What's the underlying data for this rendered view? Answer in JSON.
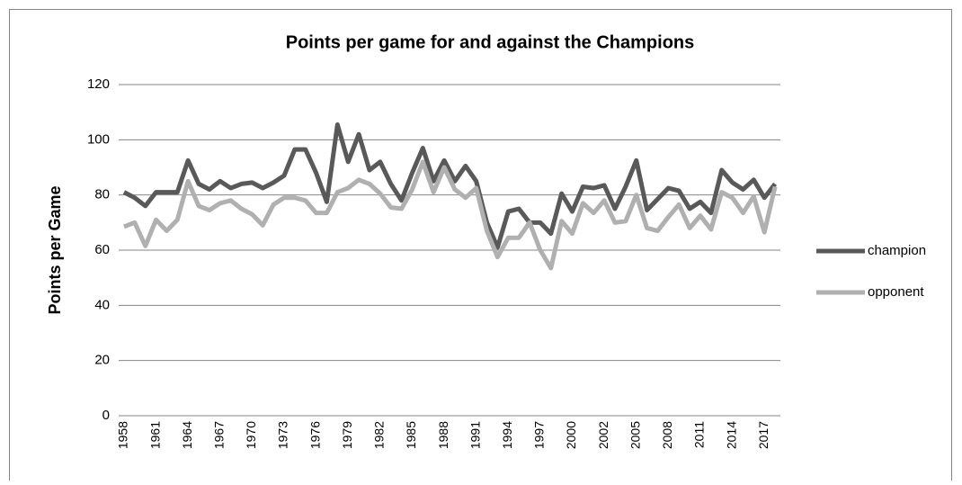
{
  "chart_data": {
    "type": "line",
    "title": "Points  per game for and against the Champions",
    "y_label": "Points per Game",
    "categories": [
      "1958",
      null,
      null,
      "1961",
      null,
      null,
      "1964",
      null,
      null,
      "1967",
      null,
      null,
      "1970",
      null,
      null,
      "1973",
      null,
      null,
      "1976",
      null,
      null,
      "1979",
      null,
      null,
      "1982",
      null,
      null,
      "1985",
      null,
      null,
      "1988",
      null,
      null,
      "1991",
      null,
      null,
      "1994",
      null,
      null,
      "1997",
      null,
      null,
      "2000",
      null,
      null,
      "2002",
      null,
      null,
      "2005",
      null,
      null,
      "2008",
      null,
      null,
      "2011",
      null,
      null,
      "2014",
      null,
      null,
      "2017",
      null
    ],
    "series": [
      {
        "name": "champion",
        "color": "#595959",
        "values": [
          81,
          79,
          76,
          81,
          81,
          81,
          92.5,
          84,
          82,
          85,
          82.5,
          84,
          84.5,
          82.5,
          84.5,
          87,
          96.5,
          96.5,
          88,
          77.5,
          105.5,
          92,
          102,
          89,
          92,
          84,
          78,
          88,
          97,
          85,
          92.5,
          85,
          90.5,
          85,
          70,
          61,
          74,
          75,
          70,
          70,
          66,
          80.5,
          74,
          83,
          82.5,
          83.5,
          75,
          83,
          92.5,
          74.5,
          78.5,
          82.5,
          81.5,
          75,
          77.5,
          73.5,
          89,
          84.5,
          82,
          85.5,
          79,
          84
        ]
      },
      {
        "name": "opponent",
        "color": "#b0b0b0",
        "values": [
          68.5,
          70,
          61.5,
          71,
          67,
          71,
          85,
          76,
          74.5,
          77,
          78,
          75,
          73,
          69,
          76.5,
          79,
          79,
          78,
          73.5,
          73.5,
          81,
          82.5,
          85.5,
          84,
          80.5,
          75.5,
          75,
          82,
          92,
          81,
          90,
          82,
          79,
          82.5,
          67,
          57.5,
          64.5,
          64.5,
          70,
          60,
          53.5,
          70.5,
          66,
          77,
          73.5,
          78,
          70,
          70.5,
          80,
          68,
          67,
          72,
          76.5,
          68,
          72.5,
          67.5,
          81,
          79,
          73.5,
          79.5,
          66.5,
          83
        ]
      }
    ],
    "ylim": [
      0,
      120
    ],
    "yticks": [
      0,
      20,
      40,
      60,
      80,
      100,
      120
    ],
    "grid": true,
    "legend": "right"
  }
}
